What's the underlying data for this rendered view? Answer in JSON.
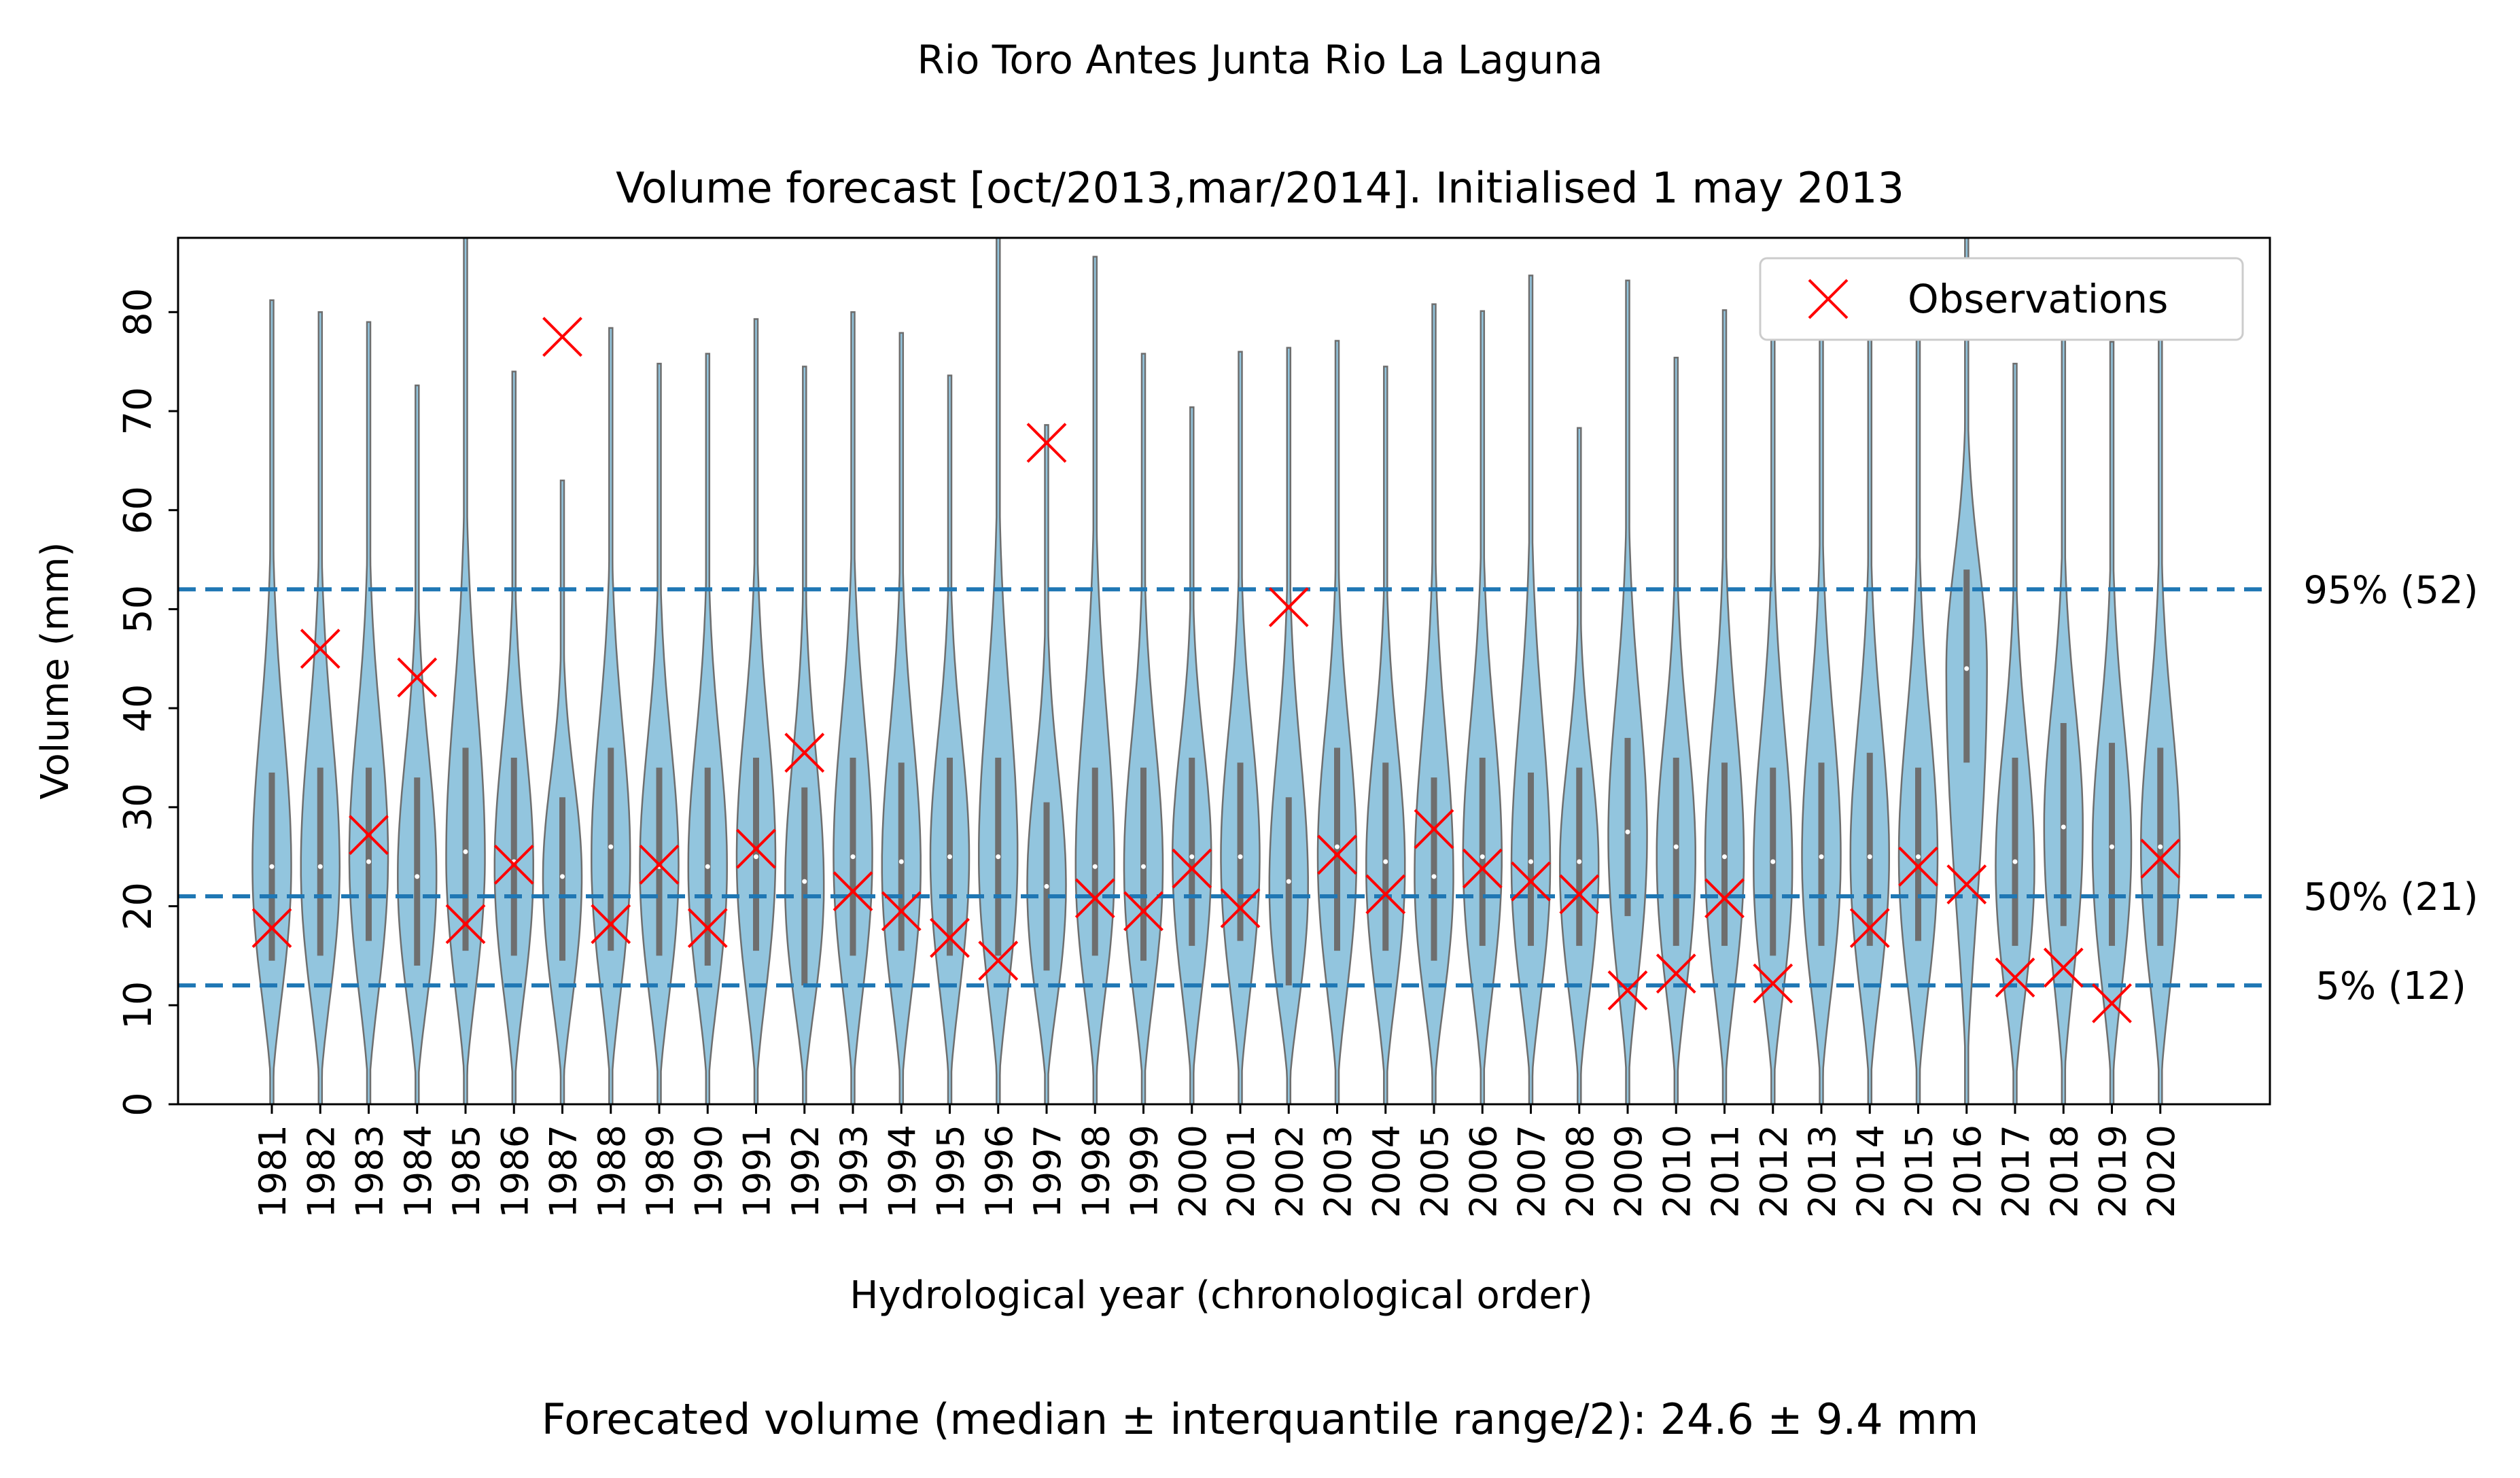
{
  "chart_data": {
    "type": "violin",
    "suptitle": "Rio Toro Antes Junta Rio La Laguna",
    "title": "Volume forecast  [oct/2013,mar/2014]. Initialised 1 may 2013",
    "xlabel": "Hydrological year (chronological order)",
    "ylabel": "Volume (mm)",
    "footer": "Forecated volume (median ±  interquantile range/2): 24.6 ± 9.4 mm",
    "ylim": [
      0,
      87.5
    ],
    "yticks": [
      0,
      10,
      20,
      30,
      40,
      50,
      60,
      70,
      80
    ],
    "highlight_year": "2013",
    "highlight_color": "#1e90ff",
    "violin_color": "#92c5de",
    "violin_edge_color": "#6e6e6e",
    "observation_color": "#ff0000",
    "reference_line_color": "#1f77b4",
    "legend": {
      "entries": [
        "Observations"
      ],
      "position": "top-right"
    },
    "reference_lines": [
      {
        "label": "95% (52)",
        "value": 52
      },
      {
        "label": "50% (21)",
        "value": 21
      },
      {
        "label": "5% (12)",
        "value": 12
      }
    ],
    "years": [
      "1981",
      "1982",
      "1983",
      "1984",
      "1985",
      "1986",
      "1987",
      "1988",
      "1989",
      "1990",
      "1991",
      "1992",
      "1993",
      "1994",
      "1995",
      "1996",
      "1997",
      "1998",
      "1999",
      "2000",
      "2001",
      "2002",
      "2003",
      "2004",
      "2005",
      "2006",
      "2007",
      "2008",
      "2009",
      "2010",
      "2011",
      "2012",
      "2013",
      "2014",
      "2015",
      "2016",
      "2017",
      "2018",
      "2019",
      "2020"
    ],
    "observations": [
      17.8,
      46.0,
      27.2,
      43.1,
      18.2,
      24.2,
      77.5,
      18.2,
      24.2,
      17.8,
      25.8,
      35.5,
      21.5,
      19.5,
      16.8,
      14.5,
      66.8,
      20.8,
      19.5,
      23.8,
      19.8,
      50.2,
      25.2,
      21.2,
      27.8,
      23.8,
      22.5,
      21.2,
      11.5,
      13.2,
      20.8,
      12.2,
      null,
      17.8,
      24.0,
      22.2,
      12.8,
      13.8,
      10.2,
      24.8
    ],
    "violins": [
      {
        "max": 81.2,
        "q1": 14.5,
        "median": 24.0,
        "q3": 33.5,
        "peak": 24.0,
        "width": 0.4
      },
      {
        "max": 80.0,
        "q1": 15.0,
        "median": 24.0,
        "q3": 34.0,
        "peak": 24.0,
        "width": 0.4
      },
      {
        "max": 79.0,
        "q1": 16.5,
        "median": 24.5,
        "q3": 34.0,
        "peak": 25.0,
        "width": 0.4
      },
      {
        "max": 72.6,
        "q1": 14.0,
        "median": 23.0,
        "q3": 33.0,
        "peak": 23.0,
        "width": 0.4
      },
      {
        "max": 87.5,
        "q1": 15.5,
        "median": 25.5,
        "q3": 36.0,
        "peak": 25.0,
        "width": 0.4
      },
      {
        "max": 74.0,
        "q1": 15.0,
        "median": 24.5,
        "q3": 35.0,
        "peak": 24.0,
        "width": 0.4
      },
      {
        "max": 63.0,
        "q1": 14.5,
        "median": 23.0,
        "q3": 31.0,
        "peak": 23.0,
        "width": 0.4
      },
      {
        "max": 78.4,
        "q1": 15.5,
        "median": 26.0,
        "q3": 36.0,
        "peak": 25.0,
        "width": 0.4
      },
      {
        "max": 74.8,
        "q1": 15.0,
        "median": 24.0,
        "q3": 34.0,
        "peak": 24.0,
        "width": 0.4
      },
      {
        "max": 75.8,
        "q1": 14.0,
        "median": 24.0,
        "q3": 34.0,
        "peak": 24.0,
        "width": 0.4
      },
      {
        "max": 79.3,
        "q1": 15.5,
        "median": 25.0,
        "q3": 35.0,
        "peak": 25.0,
        "width": 0.4
      },
      {
        "max": 74.5,
        "q1": 12.0,
        "median": 22.5,
        "q3": 32.0,
        "peak": 22.0,
        "width": 0.4
      },
      {
        "max": 80.0,
        "q1": 15.0,
        "median": 25.0,
        "q3": 35.0,
        "peak": 25.0,
        "width": 0.4
      },
      {
        "max": 77.9,
        "q1": 15.5,
        "median": 24.5,
        "q3": 34.5,
        "peak": 24.0,
        "width": 0.4
      },
      {
        "max": 73.6,
        "q1": 15.0,
        "median": 25.0,
        "q3": 35.0,
        "peak": 25.0,
        "width": 0.4
      },
      {
        "max": 87.5,
        "q1": 15.0,
        "median": 25.0,
        "q3": 35.0,
        "peak": 25.0,
        "width": 0.4
      },
      {
        "max": 68.6,
        "q1": 13.5,
        "median": 22.0,
        "q3": 30.5,
        "peak": 22.0,
        "width": 0.4
      },
      {
        "max": 85.6,
        "q1": 15.0,
        "median": 24.0,
        "q3": 34.0,
        "peak": 24.0,
        "width": 0.4
      },
      {
        "max": 75.8,
        "q1": 14.5,
        "median": 24.0,
        "q3": 34.0,
        "peak": 24.0,
        "width": 0.4
      },
      {
        "max": 70.4,
        "q1": 16.0,
        "median": 25.0,
        "q3": 35.0,
        "peak": 25.0,
        "width": 0.4
      },
      {
        "max": 76.0,
        "q1": 16.5,
        "median": 25.0,
        "q3": 34.5,
        "peak": 25.0,
        "width": 0.4
      },
      {
        "max": 76.4,
        "q1": 12.0,
        "median": 22.5,
        "q3": 31.0,
        "peak": 22.0,
        "width": 0.4
      },
      {
        "max": 77.1,
        "q1": 15.5,
        "median": 26.0,
        "q3": 36.0,
        "peak": 25.0,
        "width": 0.4
      },
      {
        "max": 74.5,
        "q1": 15.5,
        "median": 24.5,
        "q3": 34.5,
        "peak": 24.0,
        "width": 0.4
      },
      {
        "max": 80.8,
        "q1": 14.5,
        "median": 23.0,
        "q3": 33.0,
        "peak": 23.0,
        "width": 0.4
      },
      {
        "max": 80.1,
        "q1": 16.0,
        "median": 25.0,
        "q3": 35.0,
        "peak": 25.0,
        "width": 0.4
      },
      {
        "max": 83.7,
        "q1": 16.0,
        "median": 24.5,
        "q3": 33.5,
        "peak": 24.0,
        "width": 0.4
      },
      {
        "max": 68.3,
        "q1": 16.0,
        "median": 24.5,
        "q3": 34.0,
        "peak": 24.0,
        "width": 0.4
      },
      {
        "max": 83.2,
        "q1": 19.0,
        "median": 27.5,
        "q3": 37.0,
        "peak": 27.0,
        "width": 0.4
      },
      {
        "max": 75.4,
        "q1": 16.0,
        "median": 26.0,
        "q3": 35.0,
        "peak": 25.0,
        "width": 0.4
      },
      {
        "max": 80.2,
        "q1": 16.0,
        "median": 25.0,
        "q3": 34.5,
        "peak": 25.0,
        "width": 0.4
      },
      {
        "max": 79.3,
        "q1": 15.0,
        "median": 24.5,
        "q3": 34.0,
        "peak": 24.0,
        "width": 0.4
      },
      {
        "max": 82.0,
        "q1": 16.0,
        "median": 25.0,
        "q3": 34.5,
        "peak": 25.0,
        "width": 0.4
      },
      {
        "max": 79.0,
        "q1": 16.0,
        "median": 25.0,
        "q3": 35.5,
        "peak": 25.0,
        "width": 0.4
      },
      {
        "max": 80.2,
        "q1": 16.5,
        "median": 25.0,
        "q3": 34.0,
        "peak": 25.0,
        "width": 0.4
      },
      {
        "max": 87.5,
        "q1": 34.5,
        "median": 44.0,
        "q3": 54.0,
        "peak": 44.0,
        "width": 0.42
      },
      {
        "max": 74.8,
        "q1": 16.0,
        "median": 24.5,
        "q3": 35.0,
        "peak": 24.0,
        "width": 0.4
      },
      {
        "max": 77.6,
        "q1": 18.0,
        "median": 28.0,
        "q3": 38.5,
        "peak": 28.0,
        "width": 0.4
      },
      {
        "max": 77.0,
        "q1": 16.0,
        "median": 26.0,
        "q3": 36.5,
        "peak": 26.0,
        "width": 0.4
      },
      {
        "max": 78.0,
        "q1": 16.0,
        "median": 26.0,
        "q3": 36.0,
        "peak": 26.0,
        "width": 0.4
      }
    ]
  }
}
